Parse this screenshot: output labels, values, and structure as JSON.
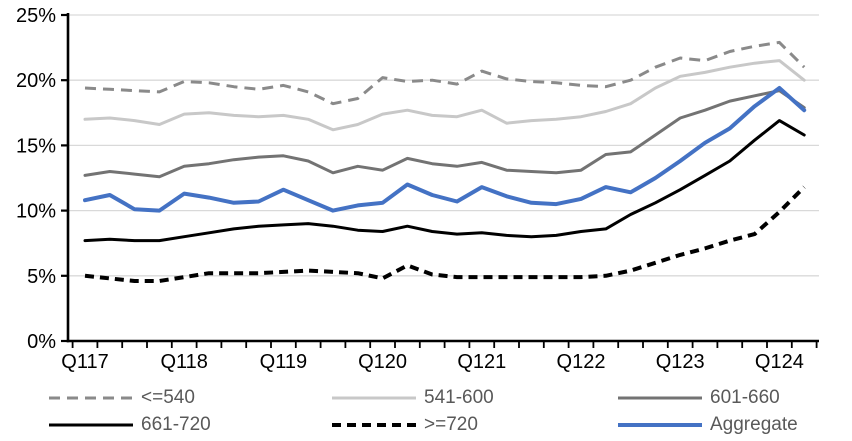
{
  "chart_data": {
    "type": "line",
    "title": "",
    "xlabel": "",
    "ylabel": "",
    "ylim": [
      0,
      25
    ],
    "y_tick_labels": [
      "0%",
      "5%",
      "10%",
      "15%",
      "20%",
      "25%"
    ],
    "x_tick_labels": [
      "Q117",
      "Q118",
      "Q119",
      "Q120",
      "Q121",
      "Q122",
      "Q123",
      "Q124"
    ],
    "x_points_per_label": 4,
    "n_points": 30,
    "x_period_note": "quarterly points from Q1 2017 to Q2 2024",
    "grid": true,
    "gridline_color": "#d9d9d9",
    "axis_color": "#000000",
    "legend_position": "bottom",
    "legend_text_color": "#595959",
    "series": [
      {
        "name": "<=540",
        "color": "#8a8a8a",
        "style": "dashed",
        "width": 3,
        "values": [
          19.4,
          19.3,
          19.2,
          19.1,
          19.9,
          19.8,
          19.5,
          19.3,
          19.6,
          19.1,
          18.2,
          18.6,
          20.2,
          19.9,
          20.0,
          19.7,
          20.7,
          20.1,
          19.9,
          19.8,
          19.6,
          19.5,
          20.0,
          21.0,
          21.7,
          21.5,
          22.2,
          22.6,
          22.9,
          21.0
        ]
      },
      {
        "name": "541-600",
        "color": "#c8c8c8",
        "style": "solid",
        "width": 3,
        "values": [
          17.0,
          17.1,
          16.9,
          16.6,
          17.4,
          17.5,
          17.3,
          17.2,
          17.3,
          17.0,
          16.2,
          16.6,
          17.4,
          17.7,
          17.3,
          17.2,
          17.7,
          16.7,
          16.9,
          17.0,
          17.2,
          17.6,
          18.2,
          19.4,
          20.3,
          20.6,
          21.0,
          21.3,
          21.5,
          20.0
        ]
      },
      {
        "name": "601-660",
        "color": "#737373",
        "style": "solid",
        "width": 3,
        "values": [
          12.7,
          13.0,
          12.8,
          12.6,
          13.4,
          13.6,
          13.9,
          14.1,
          14.2,
          13.8,
          12.9,
          13.4,
          13.1,
          14.0,
          13.6,
          13.4,
          13.7,
          13.1,
          13.0,
          12.9,
          13.1,
          14.3,
          14.5,
          15.8,
          17.1,
          17.7,
          18.4,
          18.8,
          19.2,
          17.9
        ]
      },
      {
        "name": "661-720",
        "color": "#000000",
        "style": "solid",
        "width": 3,
        "values": [
          7.7,
          7.8,
          7.7,
          7.7,
          8.0,
          8.3,
          8.6,
          8.8,
          8.9,
          9.0,
          8.8,
          8.5,
          8.4,
          8.8,
          8.4,
          8.2,
          8.3,
          8.1,
          8.0,
          8.1,
          8.4,
          8.6,
          9.7,
          10.6,
          11.6,
          12.7,
          13.8,
          15.4,
          16.9,
          15.8
        ]
      },
      {
        "name": ">=720",
        "color": "#000000",
        "style": "dashed",
        "width": 4,
        "values": [
          5.0,
          4.8,
          4.6,
          4.6,
          4.9,
          5.2,
          5.2,
          5.2,
          5.3,
          5.4,
          5.3,
          5.2,
          4.8,
          5.8,
          5.1,
          4.9,
          4.9,
          4.9,
          4.9,
          4.9,
          4.9,
          5.0,
          5.4,
          6.0,
          6.6,
          7.1,
          7.7,
          8.2,
          9.9,
          11.8
        ]
      },
      {
        "name": "Aggregate",
        "color": "#4472c4",
        "style": "solid",
        "width": 4,
        "values": [
          10.8,
          11.2,
          10.1,
          10.0,
          11.3,
          11.0,
          10.6,
          10.7,
          11.6,
          10.8,
          10.0,
          10.4,
          10.6,
          12.0,
          11.2,
          10.7,
          11.8,
          11.1,
          10.6,
          10.5,
          10.9,
          11.8,
          11.4,
          12.5,
          13.8,
          15.2,
          16.3,
          18.0,
          19.4,
          17.7
        ]
      }
    ],
    "legend_rows": [
      [
        0,
        1,
        2
      ],
      [
        3,
        4,
        5
      ]
    ]
  }
}
